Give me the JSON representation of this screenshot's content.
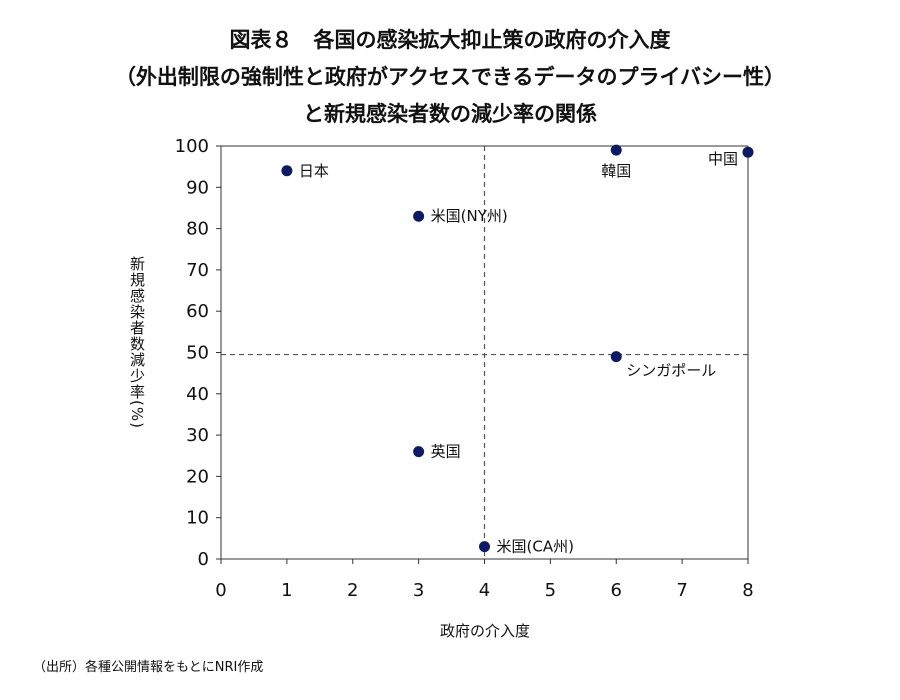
{
  "title": {
    "line1": "図表８　各国の感染拡大抑止策の政府の介入度",
    "line2": "（外出制限の強制性と政府がアクセスできるデータのプライバシー性）",
    "line3": "と新規感染者数の減少率の関係"
  },
  "source_note": "（出所）各種公開情報をもとにNRI作成",
  "colors": {
    "marker": "#0b1a6b",
    "axis": "#333333",
    "reference_line": "#555555"
  },
  "chart_data": {
    "type": "scatter",
    "xlabel": "政府の介入度",
    "ylabel": "新規感染者数減少率(%)",
    "xlim": [
      0,
      8
    ],
    "ylim": [
      0,
      100
    ],
    "xticks": [
      0,
      1,
      2,
      3,
      4,
      5,
      6,
      7,
      8
    ],
    "yticks": [
      0,
      10,
      20,
      30,
      40,
      50,
      60,
      70,
      80,
      90,
      100
    ],
    "reference_lines": {
      "x": 4,
      "y": 49.5
    },
    "points": [
      {
        "label": "日本",
        "x": 1,
        "y": 94,
        "label_pos": "right"
      },
      {
        "label": "米国(NY州)",
        "x": 3,
        "y": 83,
        "label_pos": "right"
      },
      {
        "label": "英国",
        "x": 3,
        "y": 26,
        "label_pos": "right"
      },
      {
        "label": "米国(CA州)",
        "x": 4,
        "y": 3,
        "label_pos": "right"
      },
      {
        "label": "韓国",
        "x": 6,
        "y": 99,
        "label_pos": "below"
      },
      {
        "label": "シンガポール",
        "x": 6,
        "y": 49,
        "label_pos": "below-right"
      },
      {
        "label": "中国",
        "x": 8,
        "y": 98.5,
        "label_pos": "left"
      }
    ]
  }
}
